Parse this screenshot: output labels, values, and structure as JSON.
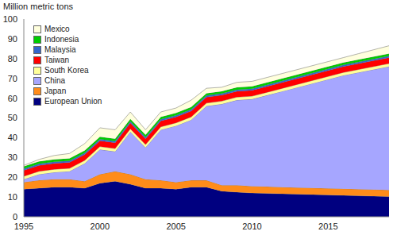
{
  "chart_data": {
    "type": "area",
    "stacked": true,
    "legend": "top-left",
    "ylabel": "Million metric tons",
    "x": [
      1995,
      1996,
      1997,
      1998,
      1999,
      2000,
      2001,
      2002,
      2003,
      2004,
      2005,
      2006,
      2007,
      2008,
      2009,
      2010,
      2011,
      2012,
      2013,
      2014,
      2015,
      2016,
      2017,
      2018,
      2019
    ],
    "xlim": [
      1995,
      2019
    ],
    "xticks": [
      1995,
      2000,
      2005,
      2010,
      2015
    ],
    "ylim": [
      0,
      100
    ],
    "yticks": [
      0,
      10,
      20,
      30,
      40,
      50,
      60,
      70,
      80,
      90,
      100
    ],
    "series": [
      {
        "name": "European Union",
        "color": "#000080",
        "values": [
          14,
          14.5,
          15,
          15,
          14.5,
          17,
          18,
          16.5,
          14.5,
          14.5,
          14,
          15,
          15,
          13,
          12.5,
          12,
          11.8,
          11.6,
          11.4,
          11.2,
          11,
          10.8,
          10.6,
          10.4,
          10.2
        ]
      },
      {
        "name": "Japan",
        "color": "#FF8C1A",
        "values": [
          3.5,
          4,
          4,
          4,
          3.5,
          4.5,
          5,
          5,
          4.5,
          4,
          3.5,
          3.5,
          3.5,
          3,
          3.5,
          3.5,
          3.5,
          3.4,
          3.4,
          3.4,
          3.4,
          3.4,
          3.4,
          3.4,
          3.4
        ]
      },
      {
        "name": "China",
        "color": "#A6A6FF",
        "values": [
          1.5,
          3,
          3.5,
          4,
          9,
          12.5,
          10,
          21.5,
          16,
          25.5,
          28.5,
          30.5,
          37.5,
          41,
          43,
          44,
          46.2,
          48.5,
          50.7,
          52.9,
          55.1,
          57.3,
          59,
          60.7,
          62.4
        ]
      },
      {
        "name": "South Korea",
        "color": "#FFFF99",
        "values": [
          1.5,
          1.5,
          1.5,
          1.5,
          1.5,
          1.5,
          1.5,
          1.5,
          1.5,
          1.5,
          1.5,
          1.5,
          1.5,
          1.5,
          1.5,
          1.5,
          1.5,
          1.5,
          1.5,
          1.5,
          1.5,
          1.5,
          1.5,
          1.5,
          1.5
        ]
      },
      {
        "name": "Taiwan",
        "color": "#FF0000",
        "values": [
          3,
          3,
          3,
          3,
          3,
          3,
          3,
          3,
          3,
          3,
          3,
          3,
          3,
          3,
          3,
          3,
          3,
          3,
          3,
          3,
          3,
          3,
          3,
          3,
          3
        ]
      },
      {
        "name": "Malaysia",
        "color": "#3366CC",
        "values": [
          0.8,
          0.8,
          0.8,
          0.8,
          0.8,
          0.8,
          0.8,
          0.8,
          0.8,
          0.8,
          0.8,
          0.8,
          0.8,
          0.8,
          0.8,
          0.8,
          0.8,
          0.8,
          0.8,
          0.8,
          0.8,
          0.8,
          0.8,
          0.8,
          0.8
        ]
      },
      {
        "name": "Indonesia",
        "color": "#00CC00",
        "values": [
          1.2,
          1.2,
          1.2,
          1.2,
          1.2,
          1.2,
          1.2,
          1.2,
          1.2,
          1.2,
          1.2,
          1.2,
          1.2,
          1.2,
          1.2,
          1.2,
          1.2,
          1.2,
          1.2,
          1.2,
          1.2,
          1.2,
          1.2,
          1.2,
          1.2
        ]
      },
      {
        "name": "Mexico",
        "color": "#FFFFDD",
        "values": [
          0.5,
          1,
          2,
          2.5,
          3.5,
          4.5,
          4.5,
          3.5,
          2.5,
          2.5,
          2.5,
          3.5,
          2.5,
          2,
          2.5,
          2.5,
          2.5,
          2.5,
          2.5,
          2.5,
          2.5,
          2.5,
          3,
          3.5,
          4
        ]
      }
    ]
  }
}
